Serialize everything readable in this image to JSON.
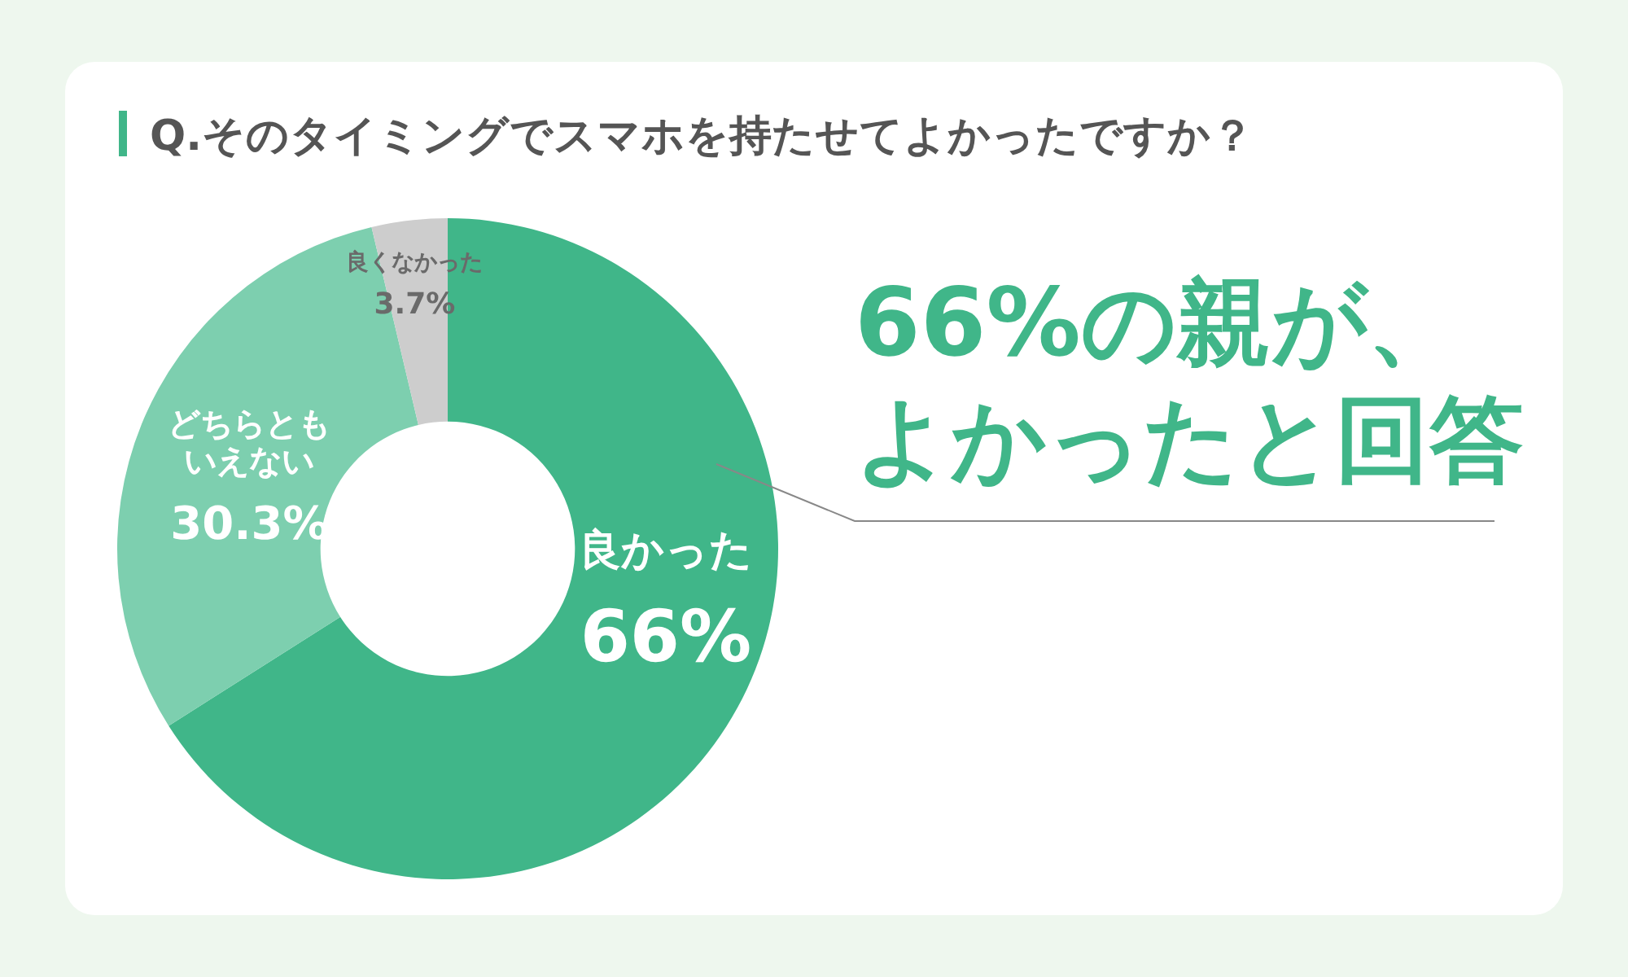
{
  "chart_data": {
    "type": "donut",
    "title": "Q.そのタイミングでスマホを持たせてよかったですか？",
    "categories": [
      "良かった",
      "どちらともいえない",
      "良くなかった"
    ],
    "values": [
      66,
      30.3,
      3.7
    ],
    "value_labels": [
      "66%",
      "30.3%",
      "3.7%"
    ],
    "colors": [
      "#40b689",
      "#7dcfaf",
      "#cdcdcd"
    ],
    "annotations": [
      "66%の親が、よかったと回答"
    ]
  }
}
